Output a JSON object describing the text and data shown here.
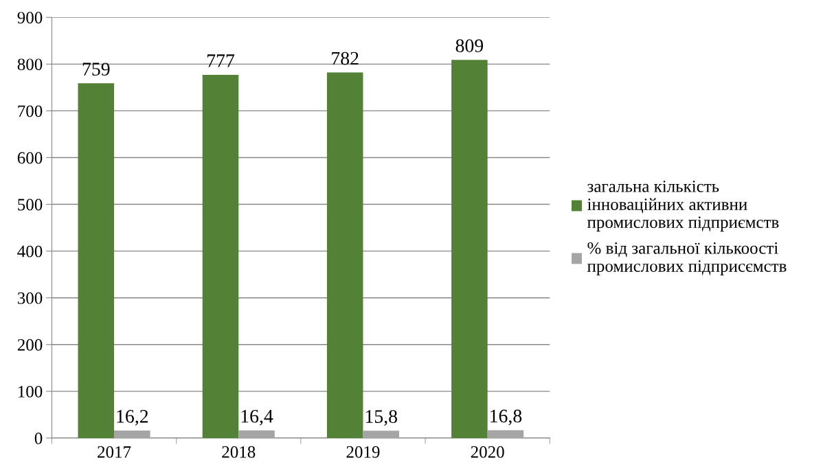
{
  "chart_data": {
    "type": "bar",
    "categories": [
      "2017",
      "2018",
      "2019",
      "2020"
    ],
    "series": [
      {
        "name": "загальна кількість\nінноваційних активни\nпромислових підприємств",
        "color": "#538135",
        "values": [
          759,
          777,
          782,
          809
        ],
        "value_labels": [
          "759",
          "777",
          "782",
          "809"
        ]
      },
      {
        "name": "% від загальної кількоості\nпромислових підприсємств",
        "color": "#a5a5a5",
        "values": [
          16.2,
          16.4,
          15.8,
          16.8
        ],
        "value_labels": [
          "16,2",
          "16,4",
          "15,8",
          "16,8"
        ]
      }
    ],
    "ylim": [
      0,
      900
    ],
    "yticks": [
      0,
      100,
      200,
      300,
      400,
      500,
      600,
      700,
      800,
      900
    ],
    "grid": "y",
    "legend": "right"
  }
}
